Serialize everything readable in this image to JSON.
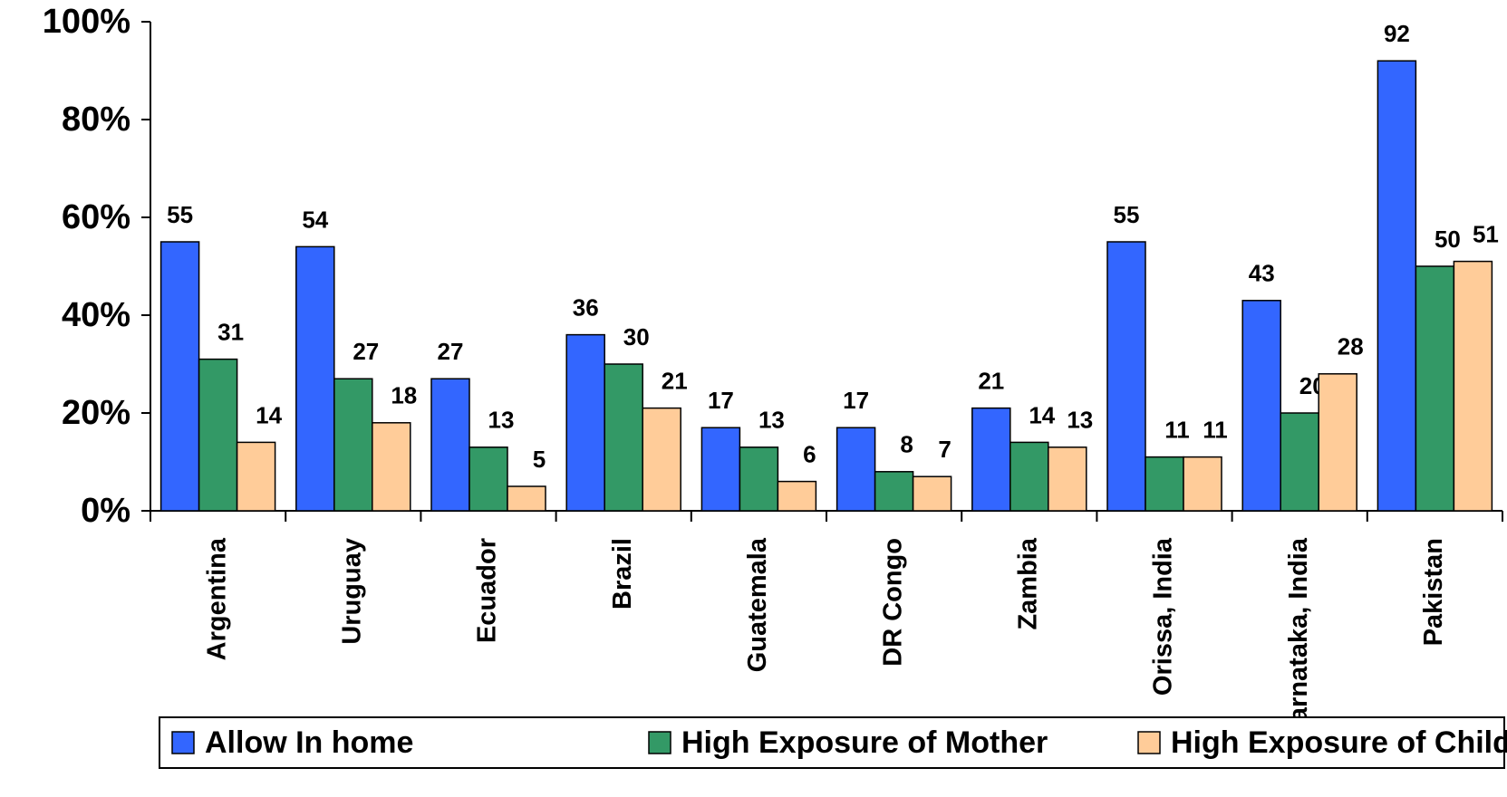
{
  "chart_data": {
    "type": "bar",
    "categories": [
      "Argentina",
      "Uruguay",
      "Ecuador",
      "Brazil",
      "Guatemala",
      "DR Congo",
      "Zambia",
      "Orissa, India",
      "Karnataka, India",
      "Pakistan"
    ],
    "series": [
      {
        "name": "Allow In home",
        "color": "#3366ff",
        "values": [
          55,
          54,
          27,
          36,
          17,
          17,
          21,
          55,
          43,
          92
        ]
      },
      {
        "name": "High Exposure of Mother",
        "color": "#339966",
        "values": [
          31,
          27,
          13,
          30,
          13,
          8,
          14,
          11,
          20,
          50
        ]
      },
      {
        "name": "High Exposure of Children",
        "color": "#ffcc99",
        "values": [
          14,
          18,
          5,
          21,
          6,
          7,
          13,
          11,
          28,
          51
        ]
      }
    ],
    "ylim": [
      0,
      100
    ],
    "yticks": [
      {
        "value": 0,
        "label": "0%"
      },
      {
        "value": 20,
        "label": "20%"
      },
      {
        "value": 40,
        "label": "40%"
      },
      {
        "value": 60,
        "label": "60%"
      },
      {
        "value": 80,
        "label": "80%"
      },
      {
        "value": 100,
        "label": "100%"
      }
    ],
    "grid": false,
    "legend": "bottom"
  }
}
